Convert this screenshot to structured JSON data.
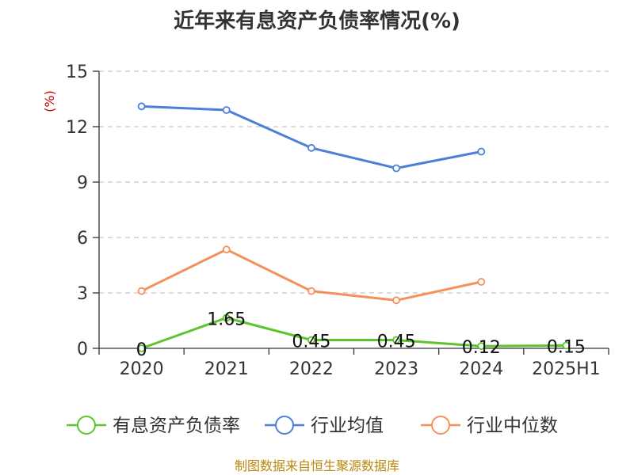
{
  "chart_data": {
    "type": "line",
    "title": "近年来有息资产负债率情况(%)",
    "ylabel": "(%)",
    "categories": [
      "2020",
      "2021",
      "2022",
      "2023",
      "2024",
      "2025H1"
    ],
    "y_ticks": [
      "0",
      "3",
      "6",
      "9",
      "12",
      "15"
    ],
    "ylim": [
      0,
      15
    ],
    "grid": true,
    "legend_position": "bottom",
    "series": [
      {
        "name": "有息资产负债率",
        "color": "#5ec42e",
        "values": [
          0,
          1.65,
          0.45,
          0.45,
          0.12,
          0.15
        ],
        "labels": [
          "0",
          "1.65",
          "0.45",
          "0.45",
          "0.12",
          "0.15"
        ]
      },
      {
        "name": "行业均值",
        "color": "#4d7fd8",
        "values": [
          13.1,
          12.9,
          10.85,
          9.75,
          10.65,
          null
        ]
      },
      {
        "name": "行业中位数",
        "color": "#f5905a",
        "values": [
          3.1,
          5.35,
          3.1,
          2.6,
          3.6,
          null
        ]
      }
    ],
    "source": "制图数据来自恒生聚源数据库"
  }
}
